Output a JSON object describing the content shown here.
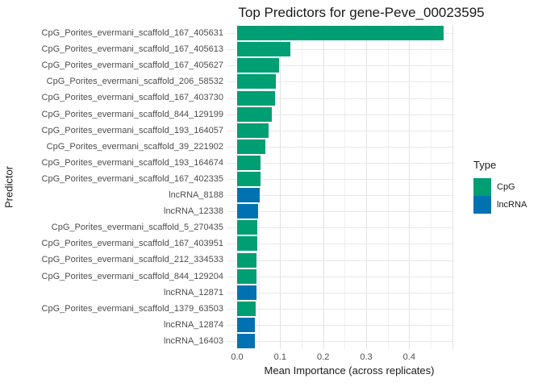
{
  "chart_data": {
    "type": "bar",
    "orientation": "horizontal",
    "title": "Top Predictors for gene-Peve_00023595",
    "xlabel": "Mean Importance (across replicates)",
    "ylabel": "Predictor",
    "xlim": [
      0,
      0.505
    ],
    "xticks": [
      0.0,
      0.1,
      0.2,
      0.3,
      0.4
    ],
    "xtick_labels": [
      "0.0",
      "0.1",
      "0.2",
      "0.3",
      "0.4"
    ],
    "grid": true,
    "legend": {
      "title": "Type",
      "position": "right",
      "entries": [
        {
          "label": "CpG",
          "color": "#009E73"
        },
        {
          "label": "lncRNA",
          "color": "#0072B2"
        }
      ]
    },
    "colors": {
      "CpG": "#009E73",
      "lncRNA": "#0072B2"
    },
    "bars": [
      {
        "label": "CpG_Porites_evermani_scaffold_167_405631",
        "type": "CpG",
        "value": 0.48
      },
      {
        "label": "CpG_Porites_evermani_scaffold_167_405613",
        "type": "CpG",
        "value": 0.124
      },
      {
        "label": "CpG_Porites_evermani_scaffold_167_405627",
        "type": "CpG",
        "value": 0.098
      },
      {
        "label": "CpG_Porites_evermani_scaffold_206_58532",
        "type": "CpG",
        "value": 0.09
      },
      {
        "label": "CpG_Porites_evermani_scaffold_167_403730",
        "type": "CpG",
        "value": 0.088
      },
      {
        "label": "CpG_Porites_evermani_scaffold_844_129199",
        "type": "CpG",
        "value": 0.081
      },
      {
        "label": "CpG_Porites_evermani_scaffold_193_164057",
        "type": "CpG",
        "value": 0.073
      },
      {
        "label": "CpG_Porites_evermani_scaffold_39_221902",
        "type": "CpG",
        "value": 0.066
      },
      {
        "label": "CpG_Porites_evermani_scaffold_193_164674",
        "type": "CpG",
        "value": 0.055
      },
      {
        "label": "CpG_Porites_evermani_scaffold_167_402335",
        "type": "CpG",
        "value": 0.054
      },
      {
        "label": "lncRNA_8188",
        "type": "lncRNA",
        "value": 0.052
      },
      {
        "label": "lncRNA_12338",
        "type": "lncRNA",
        "value": 0.049
      },
      {
        "label": "CpG_Porites_evermani_scaffold_5_270435",
        "type": "CpG",
        "value": 0.047
      },
      {
        "label": "CpG_Porites_evermani_scaffold_167_403951",
        "type": "CpG",
        "value": 0.046
      },
      {
        "label": "CpG_Porites_evermani_scaffold_212_334533",
        "type": "CpG",
        "value": 0.045
      },
      {
        "label": "CpG_Porites_evermani_scaffold_844_129204",
        "type": "CpG",
        "value": 0.045
      },
      {
        "label": "lncRNA_12871",
        "type": "lncRNA",
        "value": 0.044
      },
      {
        "label": "CpG_Porites_evermani_scaffold_1379_63503",
        "type": "CpG",
        "value": 0.043
      },
      {
        "label": "lncRNA_12874",
        "type": "lncRNA",
        "value": 0.042
      },
      {
        "label": "lncRNA_16403",
        "type": "lncRNA",
        "value": 0.041
      }
    ]
  }
}
